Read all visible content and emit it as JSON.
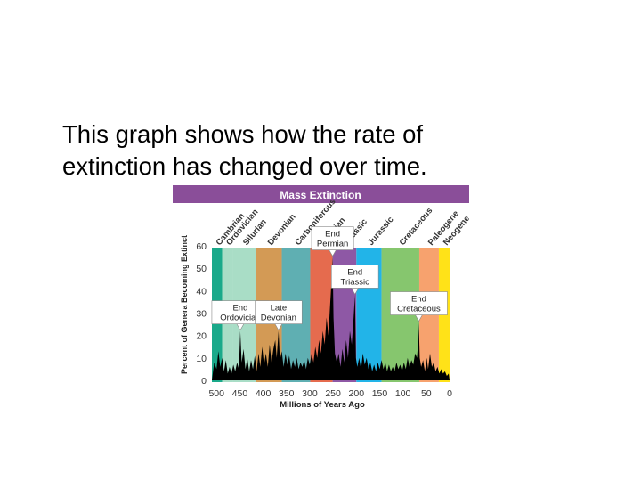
{
  "caption": {
    "line1": "This graph shows how the rate of",
    "line2": "extinction has changed over time."
  },
  "colors": {
    "banner": "#8A4E99",
    "Cambrian": "#1AA98A",
    "Ordovician": "#A9DDC6",
    "Silurian": "#A9DDC6",
    "Devonian": "#D39A55",
    "Carboniferous": "#5FAFB2",
    "Permian": "#E56B4E",
    "Triassic": "#8E58A5",
    "Jurassic": "#22B4E8",
    "Cretaceous": "#86C66E",
    "Paleogene": "#F7A26E",
    "Neogene": "#FFE218",
    "extinction_curve": "#000000"
  },
  "chart_data": {
    "type": "area",
    "title": "Mass Extinction",
    "xlabel": "Millions of Years Ago",
    "ylabel": "Percent of Genera Becoming Extinct",
    "xlim": [
      510,
      0
    ],
    "ylim": [
      0,
      60
    ],
    "x_ticks": [
      "500",
      "450",
      "400",
      "350",
      "300",
      "250",
      "200",
      "150",
      "100",
      "50",
      "0"
    ],
    "y_ticks": [
      "0",
      "10",
      "20",
      "30",
      "40",
      "50",
      "60"
    ],
    "periods": [
      {
        "name": "Cambrian",
        "start": 510,
        "end": 488
      },
      {
        "name": "Ordovician",
        "start": 488,
        "end": 466
      },
      {
        "name": "Silurian",
        "start": 466,
        "end": 416
      },
      {
        "name": "Devonian",
        "start": 416,
        "end": 360
      },
      {
        "name": "Carboniferous",
        "start": 360,
        "end": 299
      },
      {
        "name": "Permian",
        "start": 299,
        "end": 251
      },
      {
        "name": "Triassic",
        "start": 251,
        "end": 200
      },
      {
        "name": "Jurassic",
        "start": 200,
        "end": 146
      },
      {
        "name": "Cretaceous",
        "start": 146,
        "end": 65
      },
      {
        "name": "Paleogene",
        "start": 65,
        "end": 23
      },
      {
        "name": "Neogene",
        "start": 23,
        "end": 0
      }
    ],
    "series": [
      {
        "values": [
          [
            510,
            0
          ],
          [
            505,
            8
          ],
          [
            500,
            5
          ],
          [
            496,
            13
          ],
          [
            492,
            6
          ],
          [
            488,
            10
          ],
          [
            484,
            4
          ],
          [
            480,
            9
          ],
          [
            476,
            3
          ],
          [
            472,
            6
          ],
          [
            468,
            3
          ],
          [
            464,
            7
          ],
          [
            460,
            4
          ],
          [
            456,
            8
          ],
          [
            452,
            5
          ],
          [
            449,
            22
          ],
          [
            446,
            8
          ],
          [
            442,
            14
          ],
          [
            438,
            5
          ],
          [
            434,
            10
          ],
          [
            430,
            4
          ],
          [
            426,
            9
          ],
          [
            422,
            5
          ],
          [
            418,
            11
          ],
          [
            414,
            4
          ],
          [
            410,
            12
          ],
          [
            406,
            6
          ],
          [
            402,
            15
          ],
          [
            398,
            7
          ],
          [
            394,
            12
          ],
          [
            390,
            6
          ],
          [
            386,
            16
          ],
          [
            382,
            8
          ],
          [
            378,
            14
          ],
          [
            374,
            18
          ],
          [
            371,
            10
          ],
          [
            367,
            22
          ],
          [
            364,
            9
          ],
          [
            360,
            13
          ],
          [
            356,
            6
          ],
          [
            352,
            12
          ],
          [
            348,
            7
          ],
          [
            344,
            11
          ],
          [
            340,
            5
          ],
          [
            336,
            9
          ],
          [
            332,
            6
          ],
          [
            328,
            10
          ],
          [
            324,
            5
          ],
          [
            320,
            8
          ],
          [
            316,
            6
          ],
          [
            312,
            9
          ],
          [
            308,
            5
          ],
          [
            304,
            10
          ],
          [
            300,
            7
          ],
          [
            296,
            12
          ],
          [
            292,
            8
          ],
          [
            288,
            15
          ],
          [
            284,
            10
          ],
          [
            280,
            18
          ],
          [
            276,
            12
          ],
          [
            272,
            22
          ],
          [
            268,
            16
          ],
          [
            264,
            28
          ],
          [
            260,
            20
          ],
          [
            256,
            35
          ],
          [
            253,
            45
          ],
          [
            251,
            55
          ],
          [
            249,
            28
          ],
          [
            246,
            12
          ],
          [
            242,
            8
          ],
          [
            238,
            12
          ],
          [
            234,
            6
          ],
          [
            230,
            14
          ],
          [
            226,
            8
          ],
          [
            222,
            18
          ],
          [
            218,
            10
          ],
          [
            214,
            22
          ],
          [
            210,
            16
          ],
          [
            206,
            28
          ],
          [
            203,
            38
          ],
          [
            201,
            10
          ],
          [
            198,
            6
          ],
          [
            194,
            10
          ],
          [
            190,
            5
          ],
          [
            186,
            12
          ],
          [
            182,
            7
          ],
          [
            178,
            10
          ],
          [
            174,
            5
          ],
          [
            170,
            8
          ],
          [
            166,
            4
          ],
          [
            162,
            7
          ],
          [
            158,
            4
          ],
          [
            154,
            8
          ],
          [
            150,
            5
          ],
          [
            146,
            9
          ],
          [
            142,
            5
          ],
          [
            138,
            8
          ],
          [
            134,
            4
          ],
          [
            130,
            7
          ],
          [
            126,
            4
          ],
          [
            122,
            6
          ],
          [
            118,
            4
          ],
          [
            114,
            8
          ],
          [
            110,
            5
          ],
          [
            106,
            7
          ],
          [
            102,
            4
          ],
          [
            98,
            8
          ],
          [
            94,
            5
          ],
          [
            90,
            10
          ],
          [
            86,
            6
          ],
          [
            82,
            9
          ],
          [
            78,
            7
          ],
          [
            74,
            12
          ],
          [
            70,
            10
          ],
          [
            67,
            18
          ],
          [
            66,
            26
          ],
          [
            64,
            10
          ],
          [
            61,
            6
          ],
          [
            57,
            9
          ],
          [
            53,
            4
          ],
          [
            49,
            10
          ],
          [
            46,
            5
          ],
          [
            42,
            12
          ],
          [
            38,
            6
          ],
          [
            34,
            8
          ],
          [
            30,
            4
          ],
          [
            26,
            6
          ],
          [
            22,
            3
          ],
          [
            18,
            5
          ],
          [
            14,
            3
          ],
          [
            10,
            4
          ],
          [
            6,
            2
          ],
          [
            2,
            3
          ],
          [
            0,
            0
          ]
        ]
      }
    ],
    "annotations": [
      {
        "label_lines": [
          "End",
          "Ordovician"
        ],
        "x": 449,
        "y": 22
      },
      {
        "label_lines": [
          "Late",
          "Devonian"
        ],
        "x": 367,
        "y": 22
      },
      {
        "label_lines": [
          "End",
          "Permian"
        ],
        "x": 251,
        "y": 55
      },
      {
        "label_lines": [
          "End",
          "Triassic"
        ],
        "x": 203,
        "y": 38
      },
      {
        "label_lines": [
          "End",
          "Cretaceous"
        ],
        "x": 66,
        "y": 26
      }
    ]
  }
}
